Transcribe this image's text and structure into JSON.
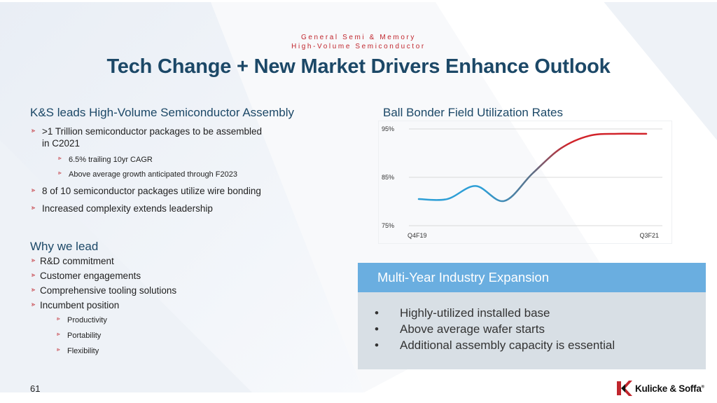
{
  "header": {
    "eyebrow_line1": "General Semi & Memory",
    "eyebrow_line2": "High-Volume Semiconductor",
    "title": "Tech Change + New Market Drivers Enhance Outlook"
  },
  "left": {
    "section1": {
      "heading": "K&S leads High-Volume Semiconductor Assembly",
      "b1_line1": ">1 Trillion semiconductor packages to be assembled",
      "b1_line2": "in C2021",
      "sub1": "6.5% trailing 10yr CAGR",
      "sub2": "Above average growth anticipated through F2023",
      "b2": "8 of 10 semiconductor packages utilize wire bonding",
      "b3": "Increased complexity extends leadership"
    },
    "section2": {
      "heading": "Why we lead",
      "items": [
        "R&D commitment",
        "Customer engagements",
        "Comprehensive tooling solutions",
        "Incumbent position"
      ],
      "subitems": [
        "Productivity",
        "Portability",
        "Flexibility"
      ]
    }
  },
  "chart_data": {
    "type": "line",
    "title": "Ball Bonder Field Utilization Rates",
    "ylim": [
      75,
      95
    ],
    "yticks": [
      "95%",
      "85%",
      "75%"
    ],
    "xtick_labels": [
      "Q4F19",
      "Q3F21"
    ],
    "x": [
      0,
      1,
      2,
      3,
      4,
      5,
      6,
      7,
      8
    ],
    "values": [
      80.5,
      80.5,
      83.2,
      80.1,
      85.8,
      91.0,
      93.6,
      94.0,
      94.0
    ],
    "grid": true,
    "colors": {
      "start": "#2e9fd6",
      "middle": "#5d6f86",
      "end": "#d1232a"
    }
  },
  "box": {
    "heading": "Multi-Year Industry Expansion",
    "items": [
      "Highly-utilized installed base",
      "Above average wafer starts",
      "Additional assembly capacity is essential"
    ]
  },
  "footer": {
    "page_number": "61",
    "logo_text": "Kulicke & Soffa",
    "logo_mark": "®"
  },
  "glyphs": {
    "arrow": "⪢",
    "dot": "•"
  }
}
